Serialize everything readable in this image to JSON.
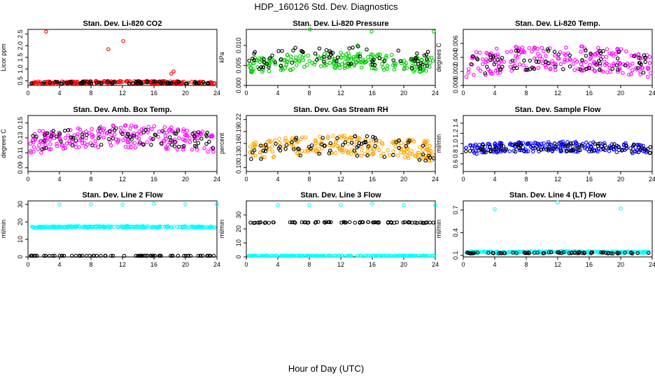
{
  "title": "HDP_160126  Std. Dev. Diagnostics",
  "xlabel": "Hour of Day (UTC)",
  "colors": {
    "red": "#ff0000",
    "green": "#00cc00",
    "magenta": "#ff00ff",
    "orange": "#ffa500",
    "blue": "#0000ff",
    "cyan": "#00ffff",
    "black": "#000000"
  },
  "chart_data": [
    {
      "type": "scatter",
      "title": "Stan. Dev. Li-820 CO2",
      "ylabel": "Licor ppm",
      "xlim": [
        0,
        24
      ],
      "ylim": [
        0.3,
        2.7
      ],
      "xticks": [
        "0",
        "4",
        "8",
        "12",
        "16",
        "20",
        "24"
      ],
      "yticks": [
        "0.5",
        "1.0",
        "1.5",
        "2.0",
        "2.5"
      ],
      "series": [
        {
          "color": "red",
          "base": 0.4,
          "spread": 0.06,
          "outliers": [
            [
              2.3,
              2.6
            ],
            [
              10.2,
              1.85
            ],
            [
              12.1,
              2.2
            ],
            [
              18.2,
              0.8
            ],
            [
              18.5,
              0.9
            ]
          ]
        },
        {
          "color": "black",
          "base": 0.4,
          "spread": 0.05,
          "outliers": []
        }
      ]
    },
    {
      "type": "scatter",
      "title": "Stan. Dev. Li-820 Pressure",
      "ylabel": "kPa",
      "xlim": [
        0,
        24
      ],
      "ylim": [
        0,
        0.014
      ],
      "xticks": [
        "0",
        "4",
        "8",
        "12",
        "16",
        "20",
        "24"
      ],
      "yticks": [
        "0.000",
        "0.005",
        "0.010"
      ],
      "series": [
        {
          "color": "green",
          "base": 0.005,
          "spread": 0.002,
          "outliers": [
            [
              8.1,
              0.014
            ],
            [
              15.9,
              0.0135
            ],
            [
              23.8,
              0.0135
            ],
            [
              14.1,
              0.01
            ]
          ]
        },
        {
          "color": "black",
          "base": 0.006,
          "spread": 0.0025,
          "outliers": []
        }
      ]
    },
    {
      "type": "scatter",
      "title": "Stan. Dev. Li-820 Temp.",
      "ylabel": "degrees C",
      "xlim": [
        0,
        24
      ],
      "ylim": [
        0,
        0.008
      ],
      "xticks": [
        "0",
        "4",
        "8",
        "12",
        "16",
        "20",
        "24"
      ],
      "yticks": [
        "0.000",
        "0.002",
        "0.004",
        "0.006"
      ],
      "series": [
        {
          "color": "magenta",
          "base": 0.0029,
          "spread": 0.0018,
          "outliers": []
        },
        {
          "color": "black",
          "base": 0.0029,
          "spread": 0.0015,
          "outliers": []
        }
      ]
    },
    {
      "type": "scatter",
      "title": "Stan. Dev. Amb. Box Temp.",
      "ylabel": "degrees C",
      "xlim": [
        0,
        24
      ],
      "ylim": [
        0.085,
        0.16
      ],
      "xticks": [
        "0",
        "4",
        "8",
        "12",
        "16",
        "20",
        "24"
      ],
      "yticks": [
        "0.09",
        "0.11",
        "0.13",
        "0.15"
      ],
      "series": [
        {
          "color": "magenta",
          "base": 0.123,
          "spread": 0.015,
          "outliers": []
        },
        {
          "color": "black",
          "base": 0.125,
          "spread": 0.012,
          "outliers": []
        }
      ]
    },
    {
      "type": "scatter",
      "title": "Stan. Dev. Gas Stream RH",
      "ylabel": "percent",
      "xlim": [
        0,
        24
      ],
      "ylim": [
        0.09,
        0.23
      ],
      "xticks": [
        "0",
        "4",
        "8",
        "12",
        "16",
        "20",
        "24"
      ],
      "yticks": [
        "0.10",
        "0.13",
        "0.16",
        "0.19",
        "0.22"
      ],
      "series": [
        {
          "color": "orange",
          "base": 0.14,
          "spread": 0.025,
          "outliers": []
        },
        {
          "color": "black",
          "base": 0.14,
          "spread": 0.025,
          "outliers": []
        }
      ]
    },
    {
      "type": "scatter",
      "title": "Stan. Dev. Sample Flow",
      "ylabel": "ml/min",
      "xlim": [
        0,
        24
      ],
      "ylim": [
        0.45,
        1.55
      ],
      "xticks": [
        "0",
        "4",
        "8",
        "12",
        "16",
        "20",
        "24"
      ],
      "yticks": [
        "0.6",
        "0.8",
        "1.0",
        "1.2",
        "1.4"
      ],
      "series": [
        {
          "color": "blue",
          "base": 0.88,
          "spread": 0.1,
          "outliers": []
        },
        {
          "color": "black",
          "base": 0.88,
          "spread": 0.08,
          "outliers": []
        }
      ]
    },
    {
      "type": "scatter",
      "title": "Stan. Dev. Line 2 Flow",
      "ylabel": "ml/min",
      "xlim": [
        0,
        24
      ],
      "ylim": [
        0,
        32
      ],
      "xticks": [
        "0",
        "4",
        "8",
        "12",
        "16",
        "20",
        "24"
      ],
      "yticks": [
        "0",
        "10",
        "20",
        "30"
      ],
      "series": [
        {
          "color": "cyan",
          "base": 17,
          "spread": 0.4,
          "outliers": [
            [
              4,
              30
            ],
            [
              8,
              30
            ],
            [
              12,
              30
            ],
            [
              16,
              30.5
            ],
            [
              20,
              30
            ],
            [
              24,
              30
            ]
          ]
        },
        {
          "color": "black",
          "base": 0.5,
          "spread": 0.1,
          "outliers": []
        }
      ]
    },
    {
      "type": "scatter",
      "title": "Stan. Dev. Line 3 Flow",
      "ylabel": "ml/min",
      "xlim": [
        0,
        24
      ],
      "ylim": [
        0,
        40
      ],
      "xticks": [
        "0",
        "4",
        "8",
        "12",
        "16",
        "20",
        "24"
      ],
      "yticks": [
        "0",
        "10",
        "20",
        "30"
      ],
      "series": [
        {
          "color": "cyan",
          "base": 0.5,
          "spread": 0.1,
          "outliers": [
            [
              4,
              37
            ],
            [
              8,
              37
            ],
            [
              12,
              37
            ],
            [
              16,
              38
            ],
            [
              20,
              37
            ],
            [
              24,
              37
            ]
          ]
        },
        {
          "color": "black",
          "base": 24.5,
          "spread": 0.3,
          "outliers": []
        }
      ]
    },
    {
      "type": "scatter",
      "title": "Stan. Dev. Line 4 (LT) Flow",
      "ylabel": "ml/min",
      "xlim": [
        0,
        24
      ],
      "ylim": [
        0.08,
        0.82
      ],
      "xticks": [
        "0",
        "4",
        "8",
        "12",
        "16",
        "20",
        "24"
      ],
      "yticks": [
        "0.1",
        "0.4",
        "0.7"
      ],
      "series": [
        {
          "color": "cyan",
          "base": 0.14,
          "spread": 0.01,
          "outliers": [
            [
              4,
              0.71
            ],
            [
              12,
              0.8
            ],
            [
              20,
              0.72
            ]
          ]
        },
        {
          "color": "black",
          "base": 0.13,
          "spread": 0.008,
          "outliers": []
        }
      ]
    }
  ]
}
